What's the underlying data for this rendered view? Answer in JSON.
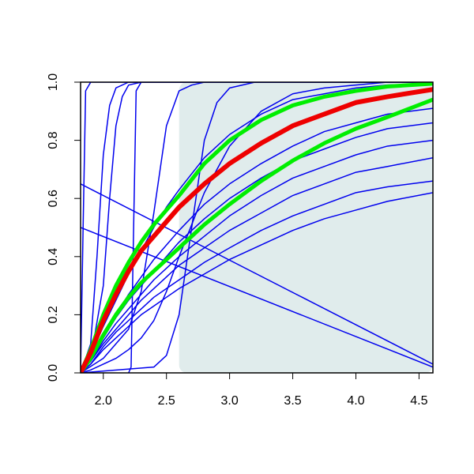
{
  "chart_data": {
    "type": "line",
    "xlim": [
      1.82,
      4.61
    ],
    "ylim": [
      0,
      1
    ],
    "xticks": [
      {
        "value": 2,
        "label": "2.0"
      },
      2.5,
      {
        "value": 3,
        "label": "3.0"
      },
      3.5,
      {
        "value": 4,
        "label": "4.0"
      },
      4.5
    ],
    "yticks": [
      {
        "value": 0,
        "label": "0.0"
      },
      0.2,
      0.4,
      0.6,
      0.8,
      {
        "value": 1,
        "label": "1.0"
      }
    ],
    "shaded_region": {
      "x": [
        2.6,
        4.61
      ],
      "y": [
        0,
        1
      ],
      "color": "#e0ecec"
    },
    "series": [
      {
        "color": "#0000ee",
        "line_width": 1.5,
        "x": [
          1.82,
          1.84,
          1.86,
          1.9,
          2.0,
          4.61
        ],
        "values": [
          0,
          0.5,
          0.97,
          1,
          1,
          1
        ]
      },
      {
        "color": "#0000ee",
        "line_width": 1.5,
        "x": [
          1.82,
          1.9,
          1.95,
          2.0,
          2.05,
          2.1,
          2.2,
          4.61
        ],
        "values": [
          0,
          0.1,
          0.4,
          0.75,
          0.92,
          0.98,
          1,
          1
        ]
      },
      {
        "color": "#0000ee",
        "line_width": 1.5,
        "x": [
          1.82,
          1.9,
          2.0,
          2.05,
          2.1,
          2.15,
          2.2,
          2.3,
          4.61
        ],
        "values": [
          0,
          0.05,
          0.3,
          0.6,
          0.85,
          0.95,
          0.99,
          1,
          1
        ]
      },
      {
        "color": "#0000ee",
        "line_width": 1.5,
        "x": [
          2.2,
          2.22,
          2.24,
          2.26,
          2.3,
          4.61
        ],
        "values": [
          0,
          0.02,
          0.5,
          0.97,
          1,
          1
        ]
      },
      {
        "color": "#0000ee",
        "line_width": 1.5,
        "x": [
          1.82,
          2.0,
          2.2,
          2.3,
          2.4,
          2.5,
          2.6,
          2.7,
          2.8,
          3.0,
          4.61
        ],
        "values": [
          0,
          0.05,
          0.15,
          0.28,
          0.55,
          0.85,
          0.97,
          0.99,
          1,
          1,
          1
        ]
      },
      {
        "color": "#0000ee",
        "line_width": 1.5,
        "x": [
          1.82,
          2.4,
          2.5,
          2.6,
          2.7,
          2.8,
          2.9,
          3.0,
          3.2,
          3.5,
          4.61
        ],
        "values": [
          0,
          0.02,
          0.06,
          0.2,
          0.5,
          0.8,
          0.93,
          0.98,
          1,
          1,
          1
        ]
      },
      {
        "color": "#0000ee",
        "line_width": 1.5,
        "x": [
          1.82,
          1.9,
          2.0,
          2.1,
          2.2,
          2.3,
          2.4,
          2.5,
          2.6,
          2.8,
          3.0,
          3.25,
          3.5,
          3.75,
          4.0,
          4.25,
          4.61
        ],
        "values": [
          0,
          0.03,
          0.08,
          0.12,
          0.16,
          0.2,
          0.23,
          0.26,
          0.29,
          0.34,
          0.39,
          0.44,
          0.49,
          0.53,
          0.56,
          0.59,
          0.62
        ]
      },
      {
        "color": "#0000ee",
        "line_width": 1.5,
        "x": [
          1.82,
          1.9,
          2.0,
          2.1,
          2.2,
          2.3,
          2.4,
          2.5,
          2.6,
          2.8,
          3.0,
          3.25,
          3.5,
          3.75,
          4.0,
          4.25,
          4.61
        ],
        "values": [
          0,
          0.03,
          0.09,
          0.14,
          0.18,
          0.22,
          0.26,
          0.29,
          0.32,
          0.38,
          0.43,
          0.49,
          0.54,
          0.58,
          0.62,
          0.64,
          0.66
        ]
      },
      {
        "color": "#0000ee",
        "line_width": 1.5,
        "x": [
          1.82,
          1.9,
          2.0,
          2.1,
          2.2,
          2.3,
          2.4,
          2.5,
          2.6,
          2.8,
          3.0,
          3.25,
          3.5,
          3.75,
          4.0,
          4.25,
          4.61
        ],
        "values": [
          0,
          0.04,
          0.1,
          0.15,
          0.2,
          0.25,
          0.29,
          0.33,
          0.37,
          0.43,
          0.49,
          0.55,
          0.61,
          0.65,
          0.69,
          0.71,
          0.74
        ]
      },
      {
        "color": "#0000ee",
        "line_width": 1.5,
        "x": [
          1.82,
          1.9,
          2.0,
          2.1,
          2.2,
          2.3,
          2.4,
          2.5,
          2.6,
          2.8,
          3.0,
          3.25,
          3.5,
          3.75,
          4.0,
          4.25,
          4.61
        ],
        "values": [
          0,
          0.04,
          0.11,
          0.17,
          0.22,
          0.27,
          0.32,
          0.36,
          0.4,
          0.47,
          0.54,
          0.61,
          0.67,
          0.71,
          0.75,
          0.78,
          0.8
        ]
      },
      {
        "color": "#0000ee",
        "line_width": 1.5,
        "x": [
          1.82,
          1.9,
          2.0,
          2.1,
          2.2,
          2.3,
          2.4,
          2.5,
          2.6,
          2.8,
          3.0,
          3.25,
          3.5,
          3.75,
          4.0,
          4.25,
          4.61
        ],
        "values": [
          0,
          0.05,
          0.12,
          0.19,
          0.25,
          0.3,
          0.35,
          0.4,
          0.45,
          0.53,
          0.6,
          0.67,
          0.73,
          0.77,
          0.81,
          0.84,
          0.86
        ]
      },
      {
        "color": "#0000ee",
        "line_width": 1.5,
        "x": [
          1.82,
          1.9,
          2.0,
          2.1,
          2.2,
          2.3,
          2.4,
          2.5,
          2.6,
          2.8,
          3.0,
          3.25,
          3.5,
          3.75,
          4.0,
          4.25,
          4.61
        ],
        "values": [
          0,
          0.05,
          0.13,
          0.2,
          0.27,
          0.33,
          0.39,
          0.44,
          0.49,
          0.58,
          0.65,
          0.72,
          0.78,
          0.83,
          0.86,
          0.89,
          0.91
        ]
      },
      {
        "color": "#0000ee",
        "line_width": 1.5,
        "x": [
          1.82,
          1.9,
          2.0,
          2.1,
          2.2,
          2.3,
          2.4,
          2.5,
          2.6,
          2.8,
          3.0,
          3.25,
          3.5,
          3.75,
          4.0,
          4.25,
          4.61
        ],
        "values": [
          0,
          0.06,
          0.16,
          0.25,
          0.34,
          0.42,
          0.5,
          0.57,
          0.63,
          0.74,
          0.82,
          0.89,
          0.94,
          0.96,
          0.98,
          0.99,
          0.995
        ]
      },
      {
        "color": "#0000ee",
        "line_width": 1.5,
        "x": [
          1.82,
          1.9,
          2.0,
          2.1,
          2.2,
          2.3,
          2.4,
          2.5,
          2.6,
          2.8,
          3.0,
          3.25,
          3.5,
          3.75,
          4.0,
          4.25,
          4.61
        ],
        "values": [
          0,
          0.01,
          0.03,
          0.05,
          0.08,
          0.12,
          0.18,
          0.28,
          0.4,
          0.62,
          0.78,
          0.9,
          0.96,
          0.98,
          0.99,
          1,
          1
        ]
      },
      {
        "color": "#0000ee",
        "line_width": 1.5,
        "x": [
          1.82,
          4.61
        ],
        "values": [
          0.65,
          0.03
        ]
      },
      {
        "color": "#0000ee",
        "line_width": 1.5,
        "x": [
          1.82,
          4.61
        ],
        "values": [
          0.5,
          0.02
        ]
      },
      {
        "color": "#00ee00",
        "line_width": 5,
        "x": [
          1.82,
          1.9,
          2.0,
          2.1,
          2.2,
          2.3,
          2.4,
          2.5,
          2.6,
          2.8,
          3.0,
          3.25,
          3.5,
          3.75,
          4.0,
          4.25,
          4.61
        ],
        "values": [
          0,
          0.08,
          0.2,
          0.3,
          0.38,
          0.45,
          0.51,
          0.56,
          0.61,
          0.72,
          0.8,
          0.87,
          0.92,
          0.95,
          0.97,
          0.985,
          0.995
        ]
      },
      {
        "color": "#00ee00",
        "line_width": 5,
        "x": [
          1.82,
          1.9,
          2.0,
          2.1,
          2.2,
          2.3,
          2.4,
          2.5,
          2.6,
          2.8,
          3.0,
          3.25,
          3.5,
          3.75,
          4.0,
          4.25,
          4.61
        ],
        "values": [
          0,
          0.05,
          0.13,
          0.2,
          0.26,
          0.31,
          0.35,
          0.39,
          0.43,
          0.51,
          0.58,
          0.66,
          0.73,
          0.79,
          0.84,
          0.88,
          0.94
        ]
      },
      {
        "color": "#ee0000",
        "line_width": 6,
        "x": [
          1.82,
          1.9,
          2.0,
          2.1,
          2.2,
          2.3,
          2.4,
          2.5,
          2.6,
          2.8,
          3.0,
          3.25,
          3.5,
          3.75,
          4.0,
          4.25,
          4.61
        ],
        "values": [
          0,
          0.07,
          0.18,
          0.27,
          0.35,
          0.42,
          0.47,
          0.52,
          0.57,
          0.65,
          0.72,
          0.79,
          0.85,
          0.89,
          0.93,
          0.95,
          0.975
        ]
      }
    ]
  }
}
